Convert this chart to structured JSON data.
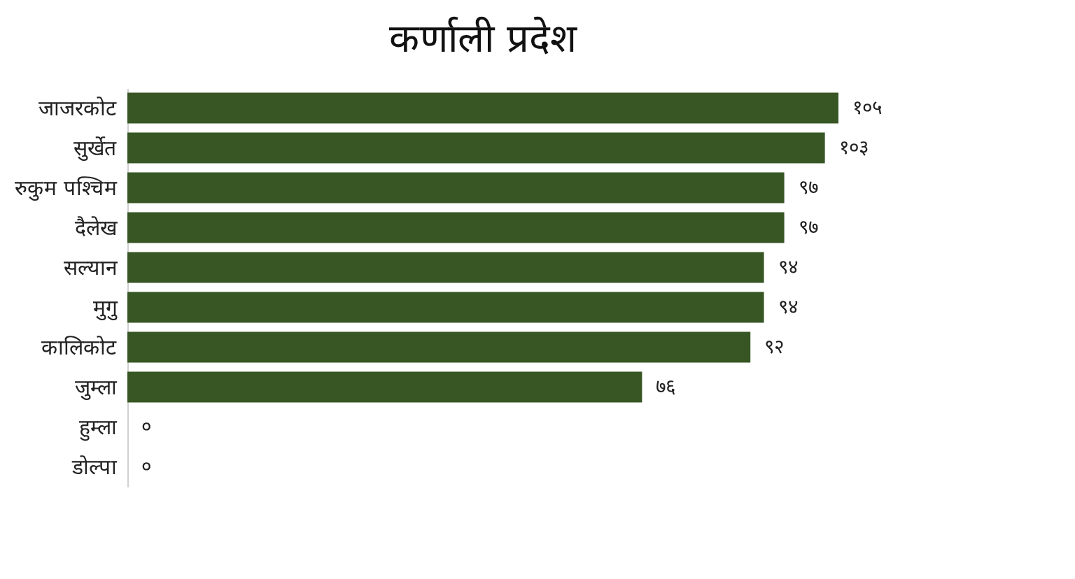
{
  "chart_data": {
    "type": "bar",
    "orientation": "horizontal",
    "title": "कर्णाली प्रदेश",
    "categories": [
      "जाजरकोट",
      "सुर्खेत",
      "रुकुम पश्चिम",
      "दैलेख",
      "सल्यान",
      "मुगु",
      "कालिकोट",
      "जुम्ला",
      "हुम्ला",
      "डोल्पा"
    ],
    "values": [
      105,
      103,
      97,
      97,
      94,
      94,
      92,
      76,
      0,
      0
    ],
    "value_labels": [
      "१०५",
      "१०३",
      "९७",
      "९७",
      "९४",
      "९४",
      "९२",
      "७६",
      "०",
      "०"
    ],
    "color": "#375623",
    "grid": false
  }
}
